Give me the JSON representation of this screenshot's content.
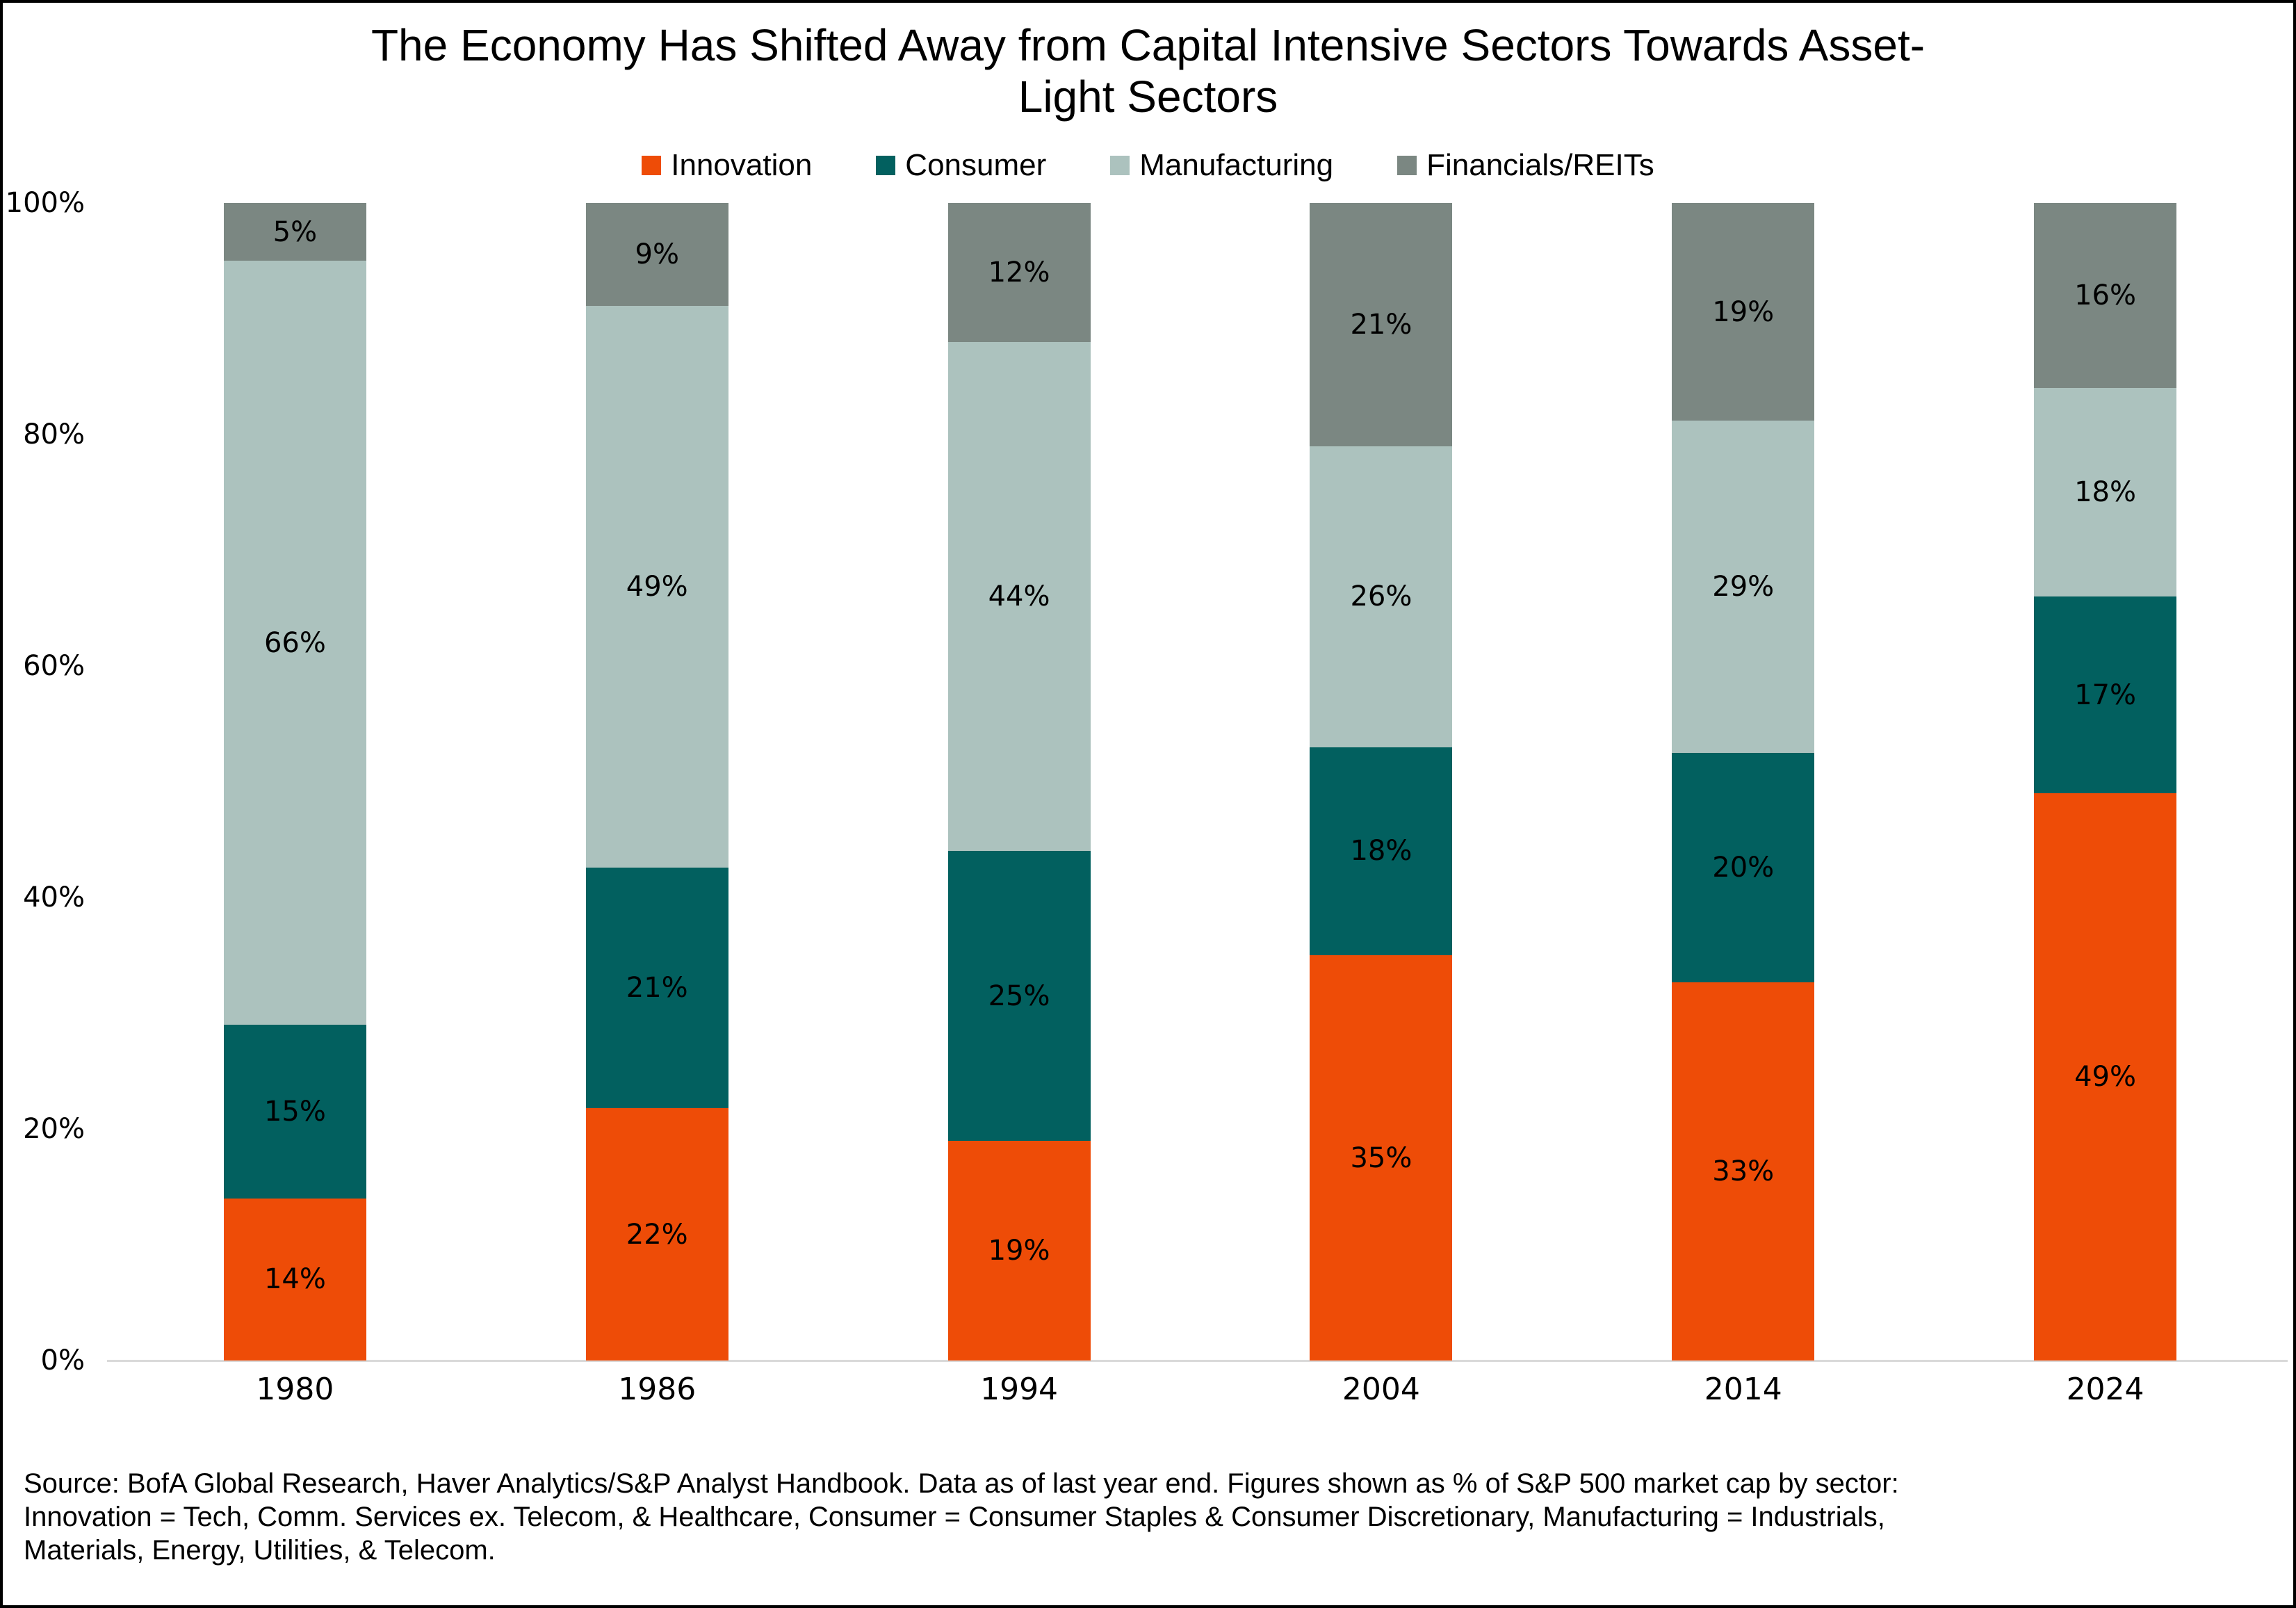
{
  "title": {
    "line1": "The Economy Has Shifted Away from Capital Intensive Sectors Towards Asset-",
    "line2": "Light Sectors"
  },
  "chart_data": {
    "type": "bar",
    "stacked": true,
    "title": "The Economy Has Shifted Away from Capital Intensive Sectors Towards Asset-Light Sectors",
    "categories": [
      "1980",
      "1986",
      "1994",
      "2004",
      "2014",
      "2024"
    ],
    "series": [
      {
        "name": "Innovation",
        "color": "#ee4c07",
        "values": [
          14,
          22,
          19,
          35,
          33,
          49
        ]
      },
      {
        "name": "Consumer",
        "color": "#02605f",
        "values": [
          15,
          21,
          25,
          18,
          20,
          17
        ]
      },
      {
        "name": "Manufacturing",
        "color": "#acc2be",
        "values": [
          66,
          49,
          44,
          26,
          29,
          18
        ]
      },
      {
        "name": "Financials/REITs",
        "color": "#7b8782",
        "values": [
          5,
          9,
          12,
          21,
          19,
          16
        ]
      }
    ],
    "value_label_suffix": "%",
    "xlabel": "",
    "ylabel": "",
    "ylim": [
      0,
      100
    ],
    "yticks": [
      {
        "value": 0,
        "label": "0%"
      },
      {
        "value": 20,
        "label": "20%"
      },
      {
        "value": 40,
        "label": "40%"
      },
      {
        "value": 60,
        "label": "60%"
      },
      {
        "value": 80,
        "label": "80%"
      },
      {
        "value": 100,
        "label": "100%"
      }
    ],
    "grid": false,
    "legend_position": "top",
    "axis_line_color": "#d9d9d9"
  },
  "source": {
    "lines": [
      "Source: BofA Global Research, Haver Analytics/S&P Analyst Handbook. Data as of last year end. Figures shown as % of S&P 500 market cap by sector:",
      "Innovation = Tech, Comm. Services ex. Telecom, & Healthcare, Consumer = Consumer Staples & Consumer Discretionary, Manufacturing = Industrials,",
      "Materials, Energy, Utilities, & Telecom."
    ]
  }
}
